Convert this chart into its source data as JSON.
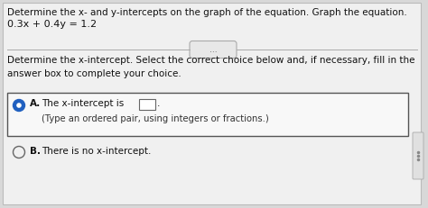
{
  "bg_color": "#d8d8d8",
  "panel_bg": "#f0f0f0",
  "title_text": "Determine the x- and y-intercepts on the graph of the equation. Graph the equation.",
  "equation": "0.3x + 0.4y = 1.2",
  "divider_button_text": "...",
  "question_text": "Determine the x-intercept. Select the correct choice below and, if necessary, fill in the\nanswer box to complete your choice.",
  "choice_A_label": "A.",
  "choice_A_text": "The x-intercept is",
  "choice_A_subtext": "(Type an ordered pair, using integers or fractions.)",
  "choice_B_label": "B.",
  "choice_B_text": "There is no x-intercept.",
  "selected_choice": "A",
  "box_border_color": "#555555",
  "selected_circle_fill": "#2060c0",
  "selected_circle_border": "#2060c0",
  "unselected_circle_fill": "#f0f0f0",
  "unselected_circle_border": "#666666",
  "scrollbar_bg": "#e0e0e0",
  "scrollbar_grip": "#888888",
  "title_fontsize": 7.5,
  "equation_fontsize": 8.0,
  "question_fontsize": 7.5,
  "choice_fontsize": 7.5,
  "subtext_fontsize": 7.2
}
